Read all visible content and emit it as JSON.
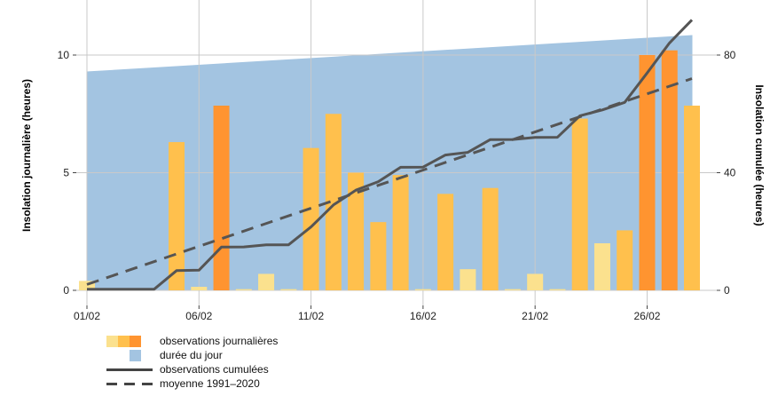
{
  "chart_data": {
    "type": "bar",
    "title": "",
    "ylabel_left": "Insolation journalière (heures)",
    "ylabel_right": "Insolation cumulée (heures)",
    "ylim_left": [
      0,
      11.5
    ],
    "ylim_right": [
      0,
      92
    ],
    "yticks_left": [
      "0",
      "5",
      "10"
    ],
    "yticks_right": [
      "0",
      "40",
      "80"
    ],
    "x_tick_labels": [
      "01/02",
      "06/02",
      "11/02",
      "16/02",
      "21/02",
      "26/02"
    ],
    "x_tick_days": [
      1,
      6,
      11,
      16,
      21,
      26
    ],
    "days": [
      1,
      2,
      3,
      4,
      5,
      6,
      7,
      8,
      9,
      10,
      11,
      12,
      13,
      14,
      15,
      16,
      17,
      18,
      19,
      20,
      21,
      22,
      23,
      24,
      25,
      26,
      27,
      28
    ],
    "daily_sunshine": [
      0.4,
      0.0,
      0.0,
      0.0,
      6.3,
      0.15,
      7.85,
      0.05,
      0.7,
      0.05,
      6.05,
      7.5,
      5.0,
      2.9,
      4.9,
      0.05,
      4.1,
      0.9,
      4.35,
      0.05,
      0.7,
      0.05,
      7.3,
      2.0,
      2.55,
      10.0,
      10.2,
      7.85
    ],
    "bar_category": [
      "low",
      "low",
      "low",
      "low",
      "mid",
      "low",
      "high",
      "low",
      "low",
      "low",
      "mid",
      "mid",
      "mid",
      "mid",
      "mid",
      "low",
      "mid",
      "low",
      "mid",
      "low",
      "low",
      "low",
      "mid",
      "low",
      "mid",
      "high",
      "high",
      "mid"
    ],
    "day_length": [
      9.3,
      10.85
    ],
    "cumulative": [
      0.4,
      0.4,
      0.4,
      0.4,
      6.7,
      6.85,
      14.7,
      14.75,
      15.45,
      15.5,
      21.55,
      29.05,
      34.05,
      36.95,
      41.85,
      41.9,
      46.0,
      46.9,
      51.25,
      51.3,
      52.0,
      52.05,
      59.35,
      61.35,
      63.9,
      73.9,
      84.1,
      91.95
    ],
    "normal_start": 2.0,
    "normal_end": 72.0,
    "colors": {
      "low": "#FBE18E",
      "mid": "#FFC04D",
      "high": "#FF9430",
      "daylight": "#A3C4E1",
      "line": "#555555",
      "grid": "#C9C9C9"
    },
    "grid": true,
    "legend_position": "bottom-left",
    "legend": [
      "observations journalières",
      "durée du jour",
      "observations cumulées",
      "moyenne 1991–2020"
    ]
  }
}
